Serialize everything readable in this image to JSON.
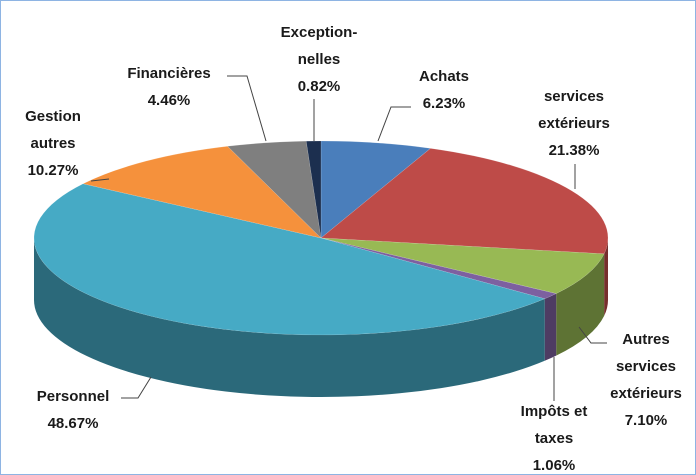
{
  "chart_data": {
    "type": "pie",
    "categories": [
      "Achats",
      "services\nextérieurs",
      "Autres\nservices\nextérieurs",
      "Impôts et\ntaxes",
      "Personnel",
      "Gestion\nautres",
      "Financières",
      "Exception-\nnelles"
    ],
    "values": [
      6.23,
      21.38,
      7.1,
      1.06,
      48.67,
      10.27,
      4.46,
      0.82
    ],
    "value_labels": [
      "6.23%",
      "21.38%",
      "7.10%",
      "1.06%",
      "48.67%",
      "10.27%",
      "4.46%",
      "0.82%"
    ],
    "colors": [
      "#4a7ebb",
      "#be4b48",
      "#98b954",
      "#7d60a0",
      "#46aac5",
      "#f5913c",
      "#7f7f7f",
      "#1c2f4f"
    ]
  }
}
